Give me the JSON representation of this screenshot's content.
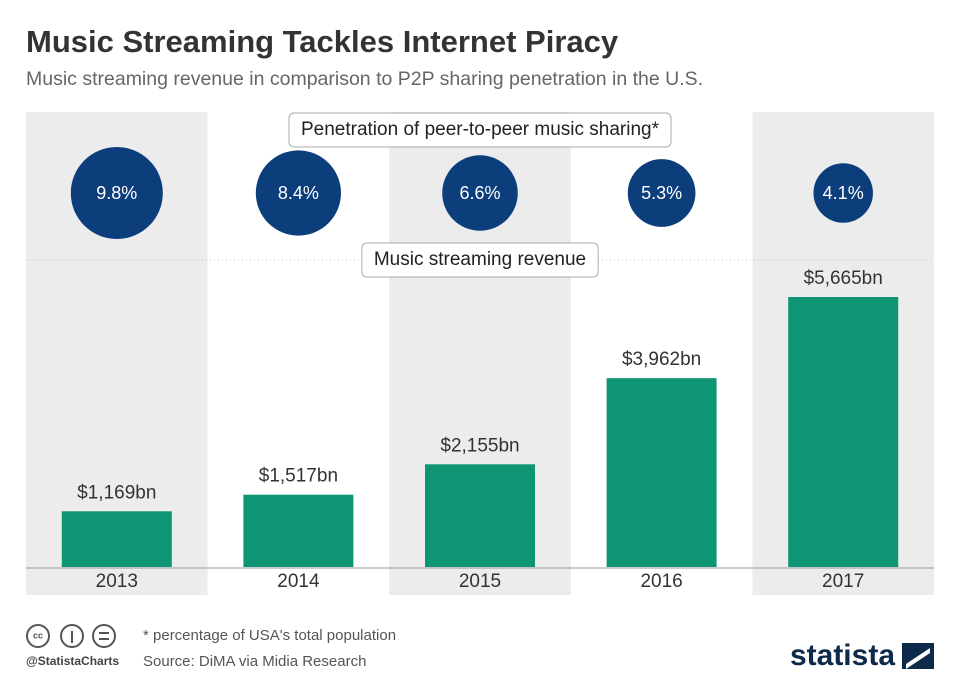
{
  "title": "Music Streaming Tackles Internet Piracy",
  "subtitle": "Music streaming revenue in comparison to P2P sharing penetration in the U.S.",
  "chart_data": [
    {
      "type": "circle",
      "title": "Penetration of peer-to-peer music sharing*",
      "values": [
        9.8,
        8.4,
        6.6,
        5.3,
        4.1
      ],
      "value_labels": [
        "9.8%",
        "8.4%",
        "6.6%",
        "5.3%",
        "4.1%"
      ],
      "color": "#0c3e7c"
    },
    {
      "type": "bar",
      "title": "Music streaming revenue",
      "categories": [
        "2013",
        "2014",
        "2015",
        "2016",
        "2017"
      ],
      "values": [
        1169,
        1517,
        2155,
        3962,
        5665
      ],
      "value_labels": [
        "$1,169bn",
        "$1,517bn",
        "$2,155bn",
        "$3,962bn",
        "$5,665bn"
      ],
      "color": "#0e9574"
    }
  ],
  "footnote": "* percentage of USA's total population",
  "source": "Source: DiMA via Midia Research",
  "handle": "@StatistaCharts",
  "brand": "statista"
}
